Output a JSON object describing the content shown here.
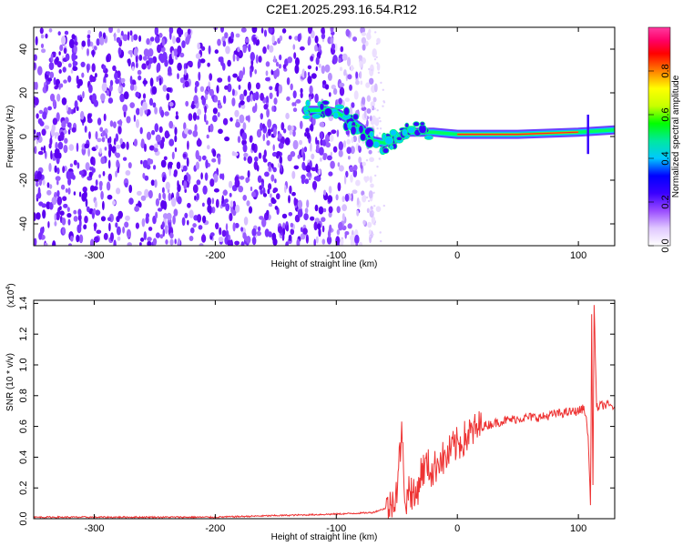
{
  "title": "C2E1.2025.293.16.54.R12",
  "chart_data": [
    {
      "type": "heatmap",
      "title": "C2E1.2025.293.16.54.R12",
      "xlabel": "Height of straight line (km)",
      "ylabel": "Frequency (Hz)",
      "xlim": [
        -350,
        130
      ],
      "ylim": [
        -50,
        50
      ],
      "x_ticks": [
        -300,
        -200,
        -100,
        0,
        100
      ],
      "y_ticks": [
        -40,
        -20,
        0,
        20,
        40
      ],
      "grid": false,
      "colorbar": {
        "label": "Normalized spectral amplitude",
        "range": [
          0,
          1
        ],
        "ticks": [
          "0.0",
          "0.2",
          "0.4",
          "0.6",
          "0.8"
        ],
        "colormap": [
          "#ffffff",
          "#e0c8ff",
          "#9a4cff",
          "#5a00f0",
          "#0000ff",
          "#00c8ff",
          "#00e8a0",
          "#00ff00",
          "#c8ff00",
          "#ffff00",
          "#ff8000",
          "#ff0000",
          "#ff0066",
          "#ff3aa0"
        ]
      },
      "noise_region_x": [
        -350,
        -75
      ],
      "signal_track": [
        {
          "x": -125,
          "y": 12
        },
        {
          "x": -110,
          "y": 12
        },
        {
          "x": -100,
          "y": 11
        },
        {
          "x": -90,
          "y": 8
        },
        {
          "x": -80,
          "y": 4
        },
        {
          "x": -70,
          "y": -2
        },
        {
          "x": -60,
          "y": -3
        },
        {
          "x": -50,
          "y": -1
        },
        {
          "x": -40,
          "y": 2
        },
        {
          "x": -20,
          "y": 2
        },
        {
          "x": 0,
          "y": 1
        },
        {
          "x": 50,
          "y": 1
        },
        {
          "x": 100,
          "y": 2
        },
        {
          "x": 130,
          "y": 3
        }
      ]
    },
    {
      "type": "line",
      "xlabel": "Height of straight line (km)",
      "ylabel": "SNR (10 * v/v)",
      "y_multiplier": "(x10",
      "y_multiplier_exp": "4",
      "xlim": [
        -350,
        130
      ],
      "ylim": [
        0,
        1.42
      ],
      "x_ticks": [
        -300,
        -200,
        -100,
        0,
        100
      ],
      "y_ticks": [
        "0.0",
        "0.2",
        "0.4",
        "0.6",
        "0.8",
        "1.0",
        "1.2",
        "1.4"
      ],
      "color": "#ee3333",
      "grid": false,
      "series": [
        {
          "x": [
            -350,
            -300,
            -250,
            -200,
            -150,
            -100,
            -70,
            -55,
            -50,
            -46,
            -44,
            -42,
            -40,
            -35,
            -30,
            -25,
            -20,
            -15,
            -10,
            -5,
            0,
            10,
            20,
            30,
            40,
            50,
            60,
            70,
            80,
            90,
            100,
            105,
            108,
            110,
            111,
            112,
            113,
            115,
            120,
            130
          ],
          "y": [
            0.01,
            0.01,
            0.01,
            0.01,
            0.02,
            0.03,
            0.04,
            0.08,
            0.2,
            0.55,
            0.25,
            0.08,
            0.22,
            0.12,
            0.3,
            0.35,
            0.3,
            0.4,
            0.38,
            0.45,
            0.48,
            0.55,
            0.6,
            0.62,
            0.64,
            0.65,
            0.66,
            0.66,
            0.68,
            0.69,
            0.7,
            0.72,
            0.55,
            0.08,
            1.3,
            0.2,
            1.4,
            0.72,
            0.74,
            0.73
          ]
        }
      ]
    }
  ]
}
